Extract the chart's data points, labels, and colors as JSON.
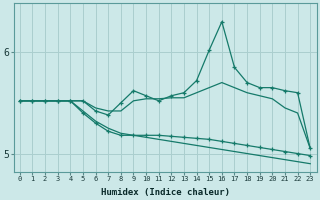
{
  "xlabel": "Humidex (Indice chaleur)",
  "background_color": "#cce8e8",
  "grid_color": "#aacece",
  "line_color": "#157a6a",
  "x_values": [
    0,
    1,
    2,
    3,
    4,
    5,
    6,
    7,
    8,
    9,
    10,
    11,
    12,
    13,
    14,
    15,
    16,
    17,
    18,
    19,
    20,
    21,
    22,
    23
  ],
  "line1": [
    5.52,
    5.52,
    5.52,
    5.52,
    5.52,
    5.52,
    5.42,
    5.38,
    5.5,
    5.62,
    5.57,
    5.52,
    5.57,
    5.6,
    5.72,
    6.02,
    6.3,
    5.85,
    5.7,
    5.65,
    5.65,
    5.62,
    5.6,
    5.05
  ],
  "line2": [
    5.52,
    5.52,
    5.52,
    5.52,
    5.52,
    5.52,
    5.45,
    5.42,
    5.42,
    5.52,
    5.54,
    5.54,
    5.55,
    5.55,
    5.6,
    5.65,
    5.7,
    5.65,
    5.6,
    5.57,
    5.54,
    5.45,
    5.4,
    5.05
  ],
  "line3": [
    5.52,
    5.52,
    5.52,
    5.52,
    5.52,
    5.4,
    5.3,
    5.22,
    5.18,
    5.18,
    5.18,
    5.18,
    5.17,
    5.16,
    5.15,
    5.14,
    5.12,
    5.1,
    5.08,
    5.06,
    5.04,
    5.02,
    5.0,
    4.98
  ],
  "line4": [
    5.52,
    5.52,
    5.52,
    5.52,
    5.52,
    5.42,
    5.32,
    5.25,
    5.2,
    5.18,
    5.16,
    5.14,
    5.12,
    5.1,
    5.08,
    5.06,
    5.04,
    5.02,
    5.0,
    4.98,
    4.96,
    4.94,
    4.92,
    4.9
  ],
  "ylim": [
    4.82,
    6.48
  ],
  "yticks": [
    5.0,
    6.0
  ],
  "xlim": [
    -0.5,
    23.5
  ]
}
